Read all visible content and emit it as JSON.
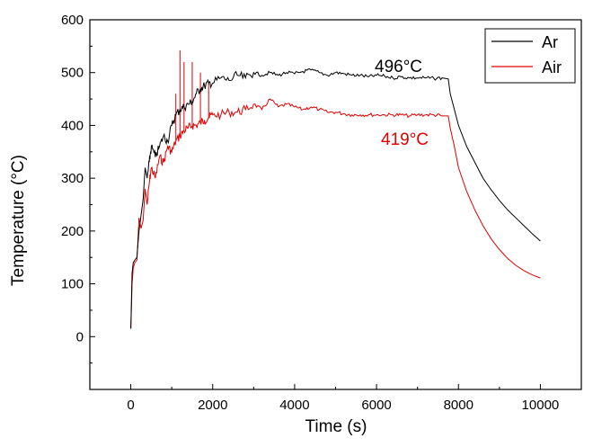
{
  "chart_data": {
    "type": "line",
    "xlabel": "Time (s)",
    "ylabel": "Temperature (°C)",
    "xlim": [
      -1000,
      11000
    ],
    "ylim": [
      -100,
      600
    ],
    "x_ticks": [
      0,
      2000,
      4000,
      6000,
      8000,
      10000
    ],
    "y_ticks": [
      0,
      100,
      200,
      300,
      400,
      500,
      600
    ],
    "grid": false,
    "legend_position": "top-right",
    "colors": {
      "Ar": "#000000",
      "Air": "#e00000"
    },
    "series": [
      {
        "name": "Ar",
        "x": [
          0,
          30,
          60,
          100,
          150,
          200,
          250,
          300,
          350,
          400,
          450,
          500,
          600,
          700,
          800,
          900,
          1000,
          1100,
          1200,
          1300,
          1400,
          1500,
          1600,
          1700,
          1800,
          1900,
          2000,
          2200,
          2400,
          2600,
          2800,
          3000,
          3200,
          3400,
          3600,
          3800,
          4000,
          4200,
          4400,
          4600,
          4800,
          5000,
          5200,
          5400,
          5600,
          5800,
          6000,
          6200,
          6400,
          6600,
          6800,
          7000,
          7200,
          7400,
          7600,
          7750,
          7800,
          7900,
          8000,
          8200,
          8400,
          8600,
          8800,
          9000,
          9200,
          9400,
          9600,
          9800,
          10000
        ],
        "y": [
          15,
          120,
          140,
          145,
          150,
          200,
          230,
          260,
          320,
          300,
          330,
          360,
          340,
          360,
          380,
          370,
          400,
          420,
          430,
          435,
          440,
          445,
          460,
          470,
          475,
          480,
          480,
          490,
          485,
          495,
          490,
          500,
          495,
          500,
          495,
          500,
          498,
          502,
          505,
          500,
          495,
          500,
          498,
          495,
          495,
          492,
          495,
          493,
          490,
          492,
          490,
          490,
          490,
          489,
          490,
          488,
          460,
          430,
          400,
          360,
          330,
          300,
          278,
          258,
          240,
          225,
          210,
          195,
          181
        ]
      },
      {
        "name": "Air",
        "x": [
          0,
          30,
          60,
          100,
          150,
          200,
          250,
          300,
          350,
          400,
          450,
          500,
          600,
          700,
          800,
          900,
          1000,
          1100,
          1200,
          1300,
          1400,
          1500,
          1600,
          1700,
          1800,
          1900,
          2000,
          2200,
          2400,
          2600,
          2800,
          3000,
          3200,
          3400,
          3600,
          3800,
          4000,
          4200,
          4400,
          4600,
          4800,
          5000,
          5200,
          5400,
          5600,
          5800,
          6000,
          6200,
          6400,
          6600,
          6800,
          7000,
          7200,
          7400,
          7600,
          7750,
          7800,
          7900,
          8000,
          8200,
          8400,
          8600,
          8800,
          9000,
          9200,
          9400,
          9600,
          9800,
          10000
        ],
        "y": [
          15,
          100,
          130,
          140,
          145,
          225,
          205,
          220,
          280,
          250,
          290,
          320,
          300,
          340,
          330,
          360,
          350,
          370,
          380,
          390,
          395,
          400,
          400,
          405,
          410,
          415,
          420,
          420,
          425,
          425,
          430,
          440,
          430,
          450,
          435,
          440,
          435,
          430,
          435,
          430,
          425,
          425,
          422,
          420,
          420,
          420,
          420,
          420,
          420,
          420,
          418,
          420,
          420,
          420,
          418,
          418,
          395,
          360,
          320,
          275,
          240,
          210,
          185,
          165,
          148,
          135,
          125,
          117,
          111
        ]
      }
    ],
    "annotations": [
      {
        "series": "Ar",
        "value": "496",
        "unit": "°C"
      },
      {
        "series": "Air",
        "value": "419",
        "unit": "°C"
      }
    ]
  }
}
